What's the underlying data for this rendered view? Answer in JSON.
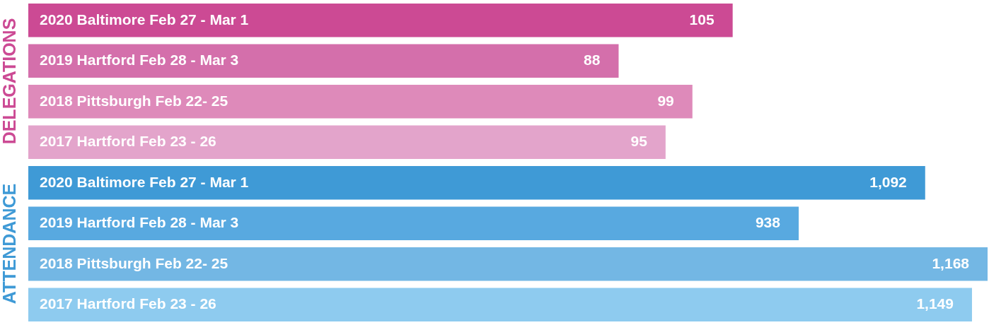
{
  "chart_data": [
    {
      "type": "bar",
      "orientation": "horizontal",
      "ylabel": "DELEGATIONS",
      "categories": [
        "2020 Baltimore Feb 27 - Mar 1",
        "2019 Hartford Feb 28 - Mar 3",
        "2018 Pittsburgh Feb 22- 25",
        "2017 Hartford Feb 23 - 26"
      ],
      "values": [
        105,
        88,
        99,
        95
      ],
      "colors": [
        "#cc4a94",
        "#d46fab",
        "#de8aba",
        "#e3a4cb"
      ],
      "value_labels": [
        "105",
        "88",
        "99",
        "95"
      ],
      "xlim": [
        0,
        143
      ]
    },
    {
      "type": "bar",
      "orientation": "horizontal",
      "ylabel": "ATTENDANCE",
      "categories": [
        "2020 Baltimore Feb 27 - Mar 1",
        "2019 Hartford Feb 28 - Mar 3",
        "2018 Pittsburgh Feb 22- 25",
        "2017 Hartford Feb 23 - 26"
      ],
      "values": [
        1092,
        938,
        1168,
        1149
      ],
      "colors": [
        "#3f9ad6",
        "#58a9e0",
        "#73b7e4",
        "#8ecbef"
      ],
      "value_labels": [
        "1,092",
        "938",
        "1,168",
        "1,149"
      ],
      "xlim": [
        0,
        1168
      ]
    }
  ]
}
